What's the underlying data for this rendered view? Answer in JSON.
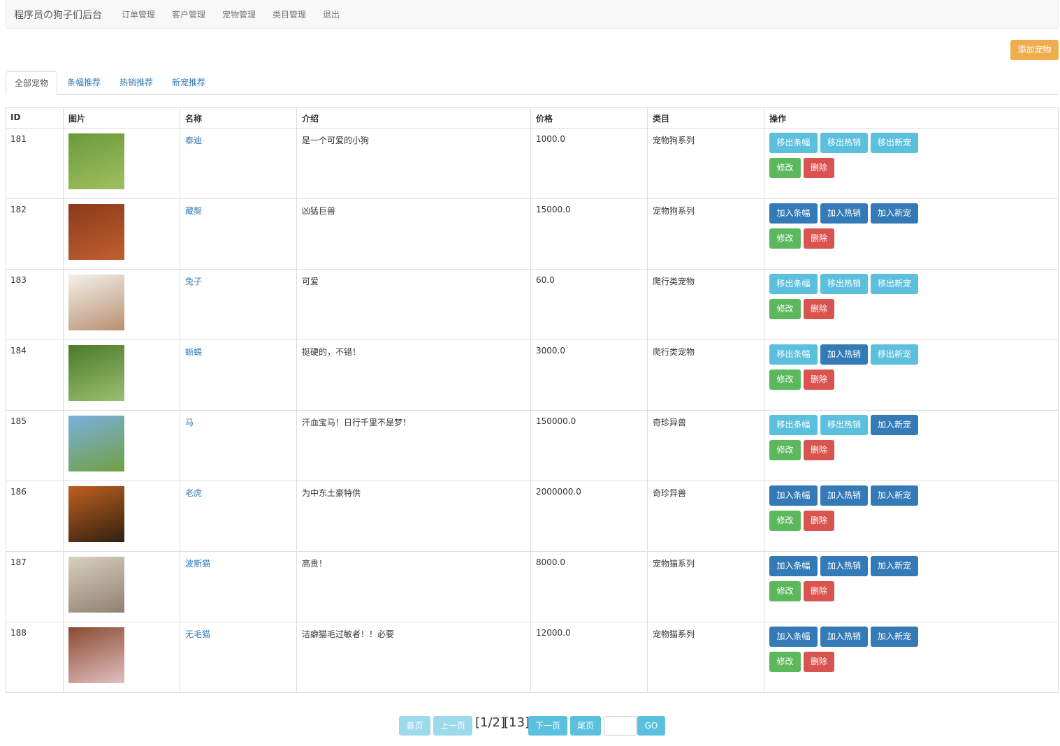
{
  "navbar": {
    "brand": "程序员の狗子们后台",
    "links": [
      "订单管理",
      "客户管理",
      "宠物管理",
      "类目管理",
      "退出"
    ]
  },
  "add_button": "添加宠物",
  "tabs": [
    "全部宠物",
    "条幅推荐",
    "热销推荐",
    "新宠推荐"
  ],
  "table": {
    "headers": [
      "ID",
      "图片",
      "名称",
      "介绍",
      "价格",
      "类目",
      "操作"
    ],
    "rows": [
      {
        "id": 181,
        "name": "泰迪",
        "intro": "是一个可爱的小狗",
        "price": "1000.0",
        "category": "宠物狗系列",
        "actions": [
          {
            "label": "移出条幅",
            "color": "#5bc0de"
          },
          {
            "label": "移出热销",
            "color": "#5bc0de"
          },
          {
            "label": "移出新宠",
            "color": "#5bc0de"
          },
          {
            "label": "修改",
            "color": "#5cb85c"
          },
          {
            "label": "删除",
            "color": "#d9534f"
          }
        ]
      },
      {
        "id": 182,
        "name": "藏獒",
        "intro": "凶猛巨兽",
        "price": "15000.0",
        "category": "宠物狗系列",
        "actions": [
          {
            "label": "加入条幅",
            "color": "#337ab7"
          },
          {
            "label": "加入热销",
            "color": "#337ab7"
          },
          {
            "label": "加入新宠",
            "color": "#337ab7"
          },
          {
            "label": "修改",
            "color": "#5cb85c"
          },
          {
            "label": "删除",
            "color": "#d9534f"
          }
        ]
      },
      {
        "id": 183,
        "name": "兔子",
        "intro": "可爱",
        "price": "60.0",
        "category": "爬行类宠物",
        "actions": [
          {
            "label": "移出条幅",
            "color": "#5bc0de"
          },
          {
            "label": "移出热销",
            "color": "#5bc0de"
          },
          {
            "label": "移出新宠",
            "color": "#5bc0de"
          },
          {
            "label": "修改",
            "color": "#5cb85c"
          },
          {
            "label": "删除",
            "color": "#d9534f"
          }
        ]
      },
      {
        "id": 184,
        "name": "蜥蜴",
        "intro": "挺硬的，不错！",
        "price": "3000.0",
        "category": "爬行类宠物",
        "actions": [
          {
            "label": "移出条幅",
            "color": "#5bc0de"
          },
          {
            "label": "加入热销",
            "color": "#337ab7"
          },
          {
            "label": "移出新宠",
            "color": "#5bc0de"
          },
          {
            "label": "修改",
            "color": "#5cb85c"
          },
          {
            "label": "删除",
            "color": "#d9534f"
          }
        ]
      },
      {
        "id": 185,
        "name": "马",
        "intro": "汗血宝马！日行千里不是梦！",
        "price": "150000.0",
        "category": "奇珍异兽",
        "actions": [
          {
            "label": "移出条幅",
            "color": "#5bc0de"
          },
          {
            "label": "移出热销",
            "color": "#5bc0de"
          },
          {
            "label": "加入新宠",
            "color": "#337ab7"
          },
          {
            "label": "修改",
            "color": "#5cb85c"
          },
          {
            "label": "删除",
            "color": "#d9534f"
          }
        ]
      },
      {
        "id": 186,
        "name": "老虎",
        "intro": "为中东土豪特供",
        "price": "2000000.0",
        "category": "奇珍异兽",
        "actions": [
          {
            "label": "加入条幅",
            "color": "#337ab7"
          },
          {
            "label": "加入热销",
            "color": "#337ab7"
          },
          {
            "label": "加入新宠",
            "color": "#337ab7"
          },
          {
            "label": "修改",
            "color": "#5cb85c"
          },
          {
            "label": "删除",
            "color": "#d9534f"
          }
        ]
      },
      {
        "id": 187,
        "name": "波斯猫",
        "intro": "高贵！",
        "price": "8000.0",
        "category": "宠物猫系列",
        "actions": [
          {
            "label": "加入条幅",
            "color": "#337ab7"
          },
          {
            "label": "加入热销",
            "color": "#337ab7"
          },
          {
            "label": "加入新宠",
            "color": "#337ab7"
          },
          {
            "label": "修改",
            "color": "#5cb85c"
          },
          {
            "label": "删除",
            "color": "#d9534f"
          }
        ]
      },
      {
        "id": 188,
        "name": "无毛猫",
        "intro": "洁癖猫毛过敏者！！必要",
        "price": "12000.0",
        "category": "宠物猫系列",
        "actions": [
          {
            "label": "加入条幅",
            "color": "#337ab7"
          },
          {
            "label": "加入热销",
            "color": "#337ab7"
          },
          {
            "label": "加入新宠",
            "color": "#337ab7"
          },
          {
            "label": "修改",
            "color": "#5cb85c"
          },
          {
            "label": "删除",
            "color": "#d9534f"
          }
        ]
      }
    ]
  },
  "pagination": {
    "first": "首页",
    "prev": "上一页",
    "status": "[1/2]",
    "total": "[13]",
    "next": "下一页",
    "last": "尾页",
    "go": "GO"
  }
}
